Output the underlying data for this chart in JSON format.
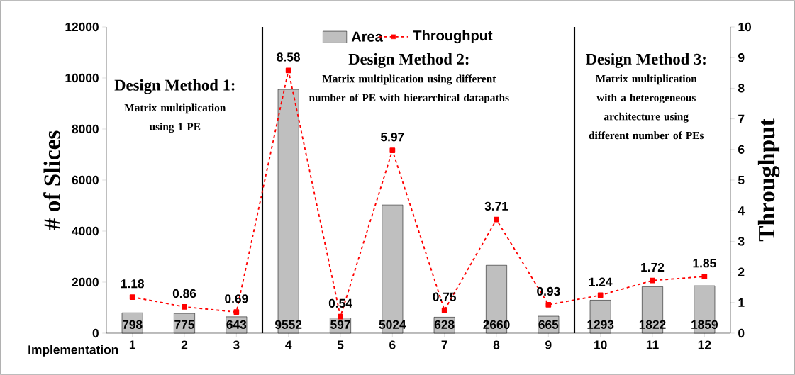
{
  "chart_data": {
    "type": "bar",
    "xlabel": "Implementation",
    "ylabel": "# of Slices",
    "y2label": "Throughput",
    "x": [
      1,
      2,
      3,
      4,
      5,
      6,
      7,
      8,
      9,
      10,
      11,
      12
    ],
    "xlim": [
      0.5,
      12.5
    ],
    "xticks": [
      1,
      2,
      3,
      4,
      5,
      6,
      7,
      8,
      9,
      10,
      11,
      12
    ],
    "ylim": [
      0,
      12000
    ],
    "yticks": [
      0,
      2000,
      4000,
      6000,
      8000,
      10000,
      12000
    ],
    "y2lim": [
      0,
      10
    ],
    "y2ticks": [
      0,
      1,
      2,
      3,
      4,
      5,
      6,
      7,
      8,
      9,
      10
    ],
    "series": [
      {
        "name": "Area",
        "color": "#bfbfbf",
        "values": [
          798,
          775,
          643,
          9552,
          597,
          5024,
          628,
          2660,
          665,
          1293,
          1822,
          1859
        ]
      },
      {
        "name": "Throughput",
        "type": "line",
        "axis": "y2",
        "color": "#ff0000",
        "marker": "square",
        "line_style": "dashed",
        "values": [
          1.18,
          0.86,
          0.69,
          8.58,
          0.54,
          5.97,
          0.75,
          3.71,
          0.93,
          1.24,
          1.72,
          1.85
        ]
      }
    ],
    "ref_lines": [
      {
        "axis": "x",
        "value": 3.5,
        "color": "#000000"
      },
      {
        "axis": "x",
        "value": 9.5,
        "color": "#000000"
      }
    ],
    "annotations": [
      "Design Method 1:",
      "Matrix multiplication using 1 PE",
      "Design Method 2:",
      "Matrix multiplication using different number of PE with hierarchical datapaths",
      "Design Method 3:",
      "Matrix multiplication with a heterogeneous architecture using different number of PEs"
    ],
    "data_labels": true,
    "legend": "top",
    "grid": false
  }
}
